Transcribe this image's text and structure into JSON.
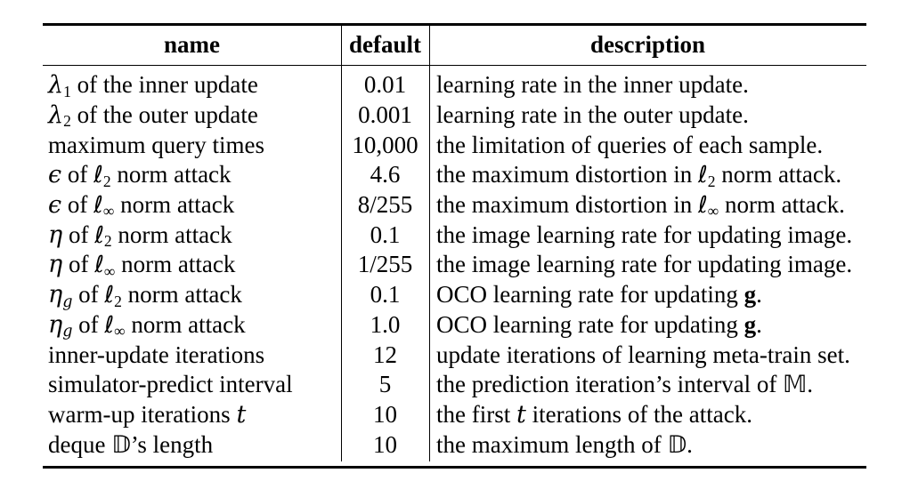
{
  "table": {
    "headers": [
      "name",
      "default",
      "description"
    ],
    "rows": [
      {
        "name": [
          [
            "λ",
            "m"
          ],
          [
            "1",
            "s"
          ],
          [
            " of the inner update",
            ""
          ]
        ],
        "default": "0.01",
        "description": [
          [
            "learning rate in the inner update.",
            ""
          ]
        ]
      },
      {
        "name": [
          [
            "λ",
            "m"
          ],
          [
            "2",
            "s"
          ],
          [
            " of the outer update",
            ""
          ]
        ],
        "default": "0.001",
        "description": [
          [
            "learning rate in the outer update.",
            ""
          ]
        ]
      },
      {
        "name": [
          [
            "maximum query times",
            ""
          ]
        ],
        "default": "10,000",
        "description": [
          [
            "the limitation of queries of each sample.",
            ""
          ]
        ]
      },
      {
        "name": [
          [
            "ϵ",
            "m"
          ],
          [
            " of ",
            ""
          ],
          [
            "ℓ",
            "l"
          ],
          [
            "2",
            "s"
          ],
          [
            " norm attack",
            ""
          ]
        ],
        "default": "4.6",
        "description": [
          [
            "the maximum distortion in ",
            ""
          ],
          [
            "ℓ",
            "l"
          ],
          [
            "2",
            "s"
          ],
          [
            " norm attack.",
            ""
          ]
        ]
      },
      {
        "name": [
          [
            "ϵ",
            "m"
          ],
          [
            " of ",
            ""
          ],
          [
            "ℓ",
            "l"
          ],
          [
            "∞",
            "s"
          ],
          [
            " norm attack",
            ""
          ]
        ],
        "default": "8/255",
        "description": [
          [
            "the maximum distortion in ",
            ""
          ],
          [
            "ℓ",
            "l"
          ],
          [
            "∞",
            "s"
          ],
          [
            " norm attack.",
            ""
          ]
        ]
      },
      {
        "name": [
          [
            "η",
            "m"
          ],
          [
            " of ",
            ""
          ],
          [
            "ℓ",
            "l"
          ],
          [
            "2",
            "s"
          ],
          [
            " norm attack",
            ""
          ]
        ],
        "default": "0.1",
        "description": [
          [
            "the image learning rate for updating image.",
            ""
          ]
        ]
      },
      {
        "name": [
          [
            "η",
            "m"
          ],
          [
            " of ",
            ""
          ],
          [
            "ℓ",
            "l"
          ],
          [
            "∞",
            "s"
          ],
          [
            " norm attack",
            ""
          ]
        ],
        "default": "1/255",
        "description": [
          [
            "the image learning rate for updating image.",
            ""
          ]
        ]
      },
      {
        "name": [
          [
            "η",
            "m"
          ],
          [
            "g",
            "ms"
          ],
          [
            " of ",
            ""
          ],
          [
            "ℓ",
            "l"
          ],
          [
            "2",
            "s"
          ],
          [
            " norm attack",
            ""
          ]
        ],
        "default": "0.1",
        "description": [
          [
            "OCO learning rate for updating ",
            ""
          ],
          [
            "g",
            "b"
          ],
          [
            ".",
            ""
          ]
        ]
      },
      {
        "name": [
          [
            "η",
            "m"
          ],
          [
            "g",
            "ms"
          ],
          [
            " of ",
            ""
          ],
          [
            "ℓ",
            "l"
          ],
          [
            "∞",
            "s"
          ],
          [
            " norm attack",
            ""
          ]
        ],
        "default": "1.0",
        "description": [
          [
            "OCO learning rate for updating ",
            ""
          ],
          [
            "g",
            "b"
          ],
          [
            ".",
            ""
          ]
        ]
      },
      {
        "name": [
          [
            "inner-update iterations",
            ""
          ]
        ],
        "default": "12",
        "description": [
          [
            "update iterations of learning meta-train set.",
            ""
          ]
        ]
      },
      {
        "name": [
          [
            "simulator-predict interval",
            ""
          ]
        ],
        "default": "5",
        "description": [
          [
            "the prediction iteration’s interval of ",
            ""
          ],
          [
            "𝕄",
            "bb"
          ],
          [
            ".",
            ""
          ]
        ]
      },
      {
        "name": [
          [
            "warm-up iterations ",
            ""
          ],
          [
            "t",
            "m"
          ]
        ],
        "default": "10",
        "description": [
          [
            "the first ",
            ""
          ],
          [
            "t",
            "m"
          ],
          [
            " iterations of the attack.",
            ""
          ]
        ]
      },
      {
        "name": [
          [
            "deque ",
            ""
          ],
          [
            "𝔻",
            "bb"
          ],
          [
            "’s length",
            ""
          ]
        ],
        "default": "10",
        "description": [
          [
            "the maximum length of ",
            ""
          ],
          [
            "𝔻",
            "bb"
          ],
          [
            ".",
            ""
          ]
        ]
      }
    ]
  }
}
